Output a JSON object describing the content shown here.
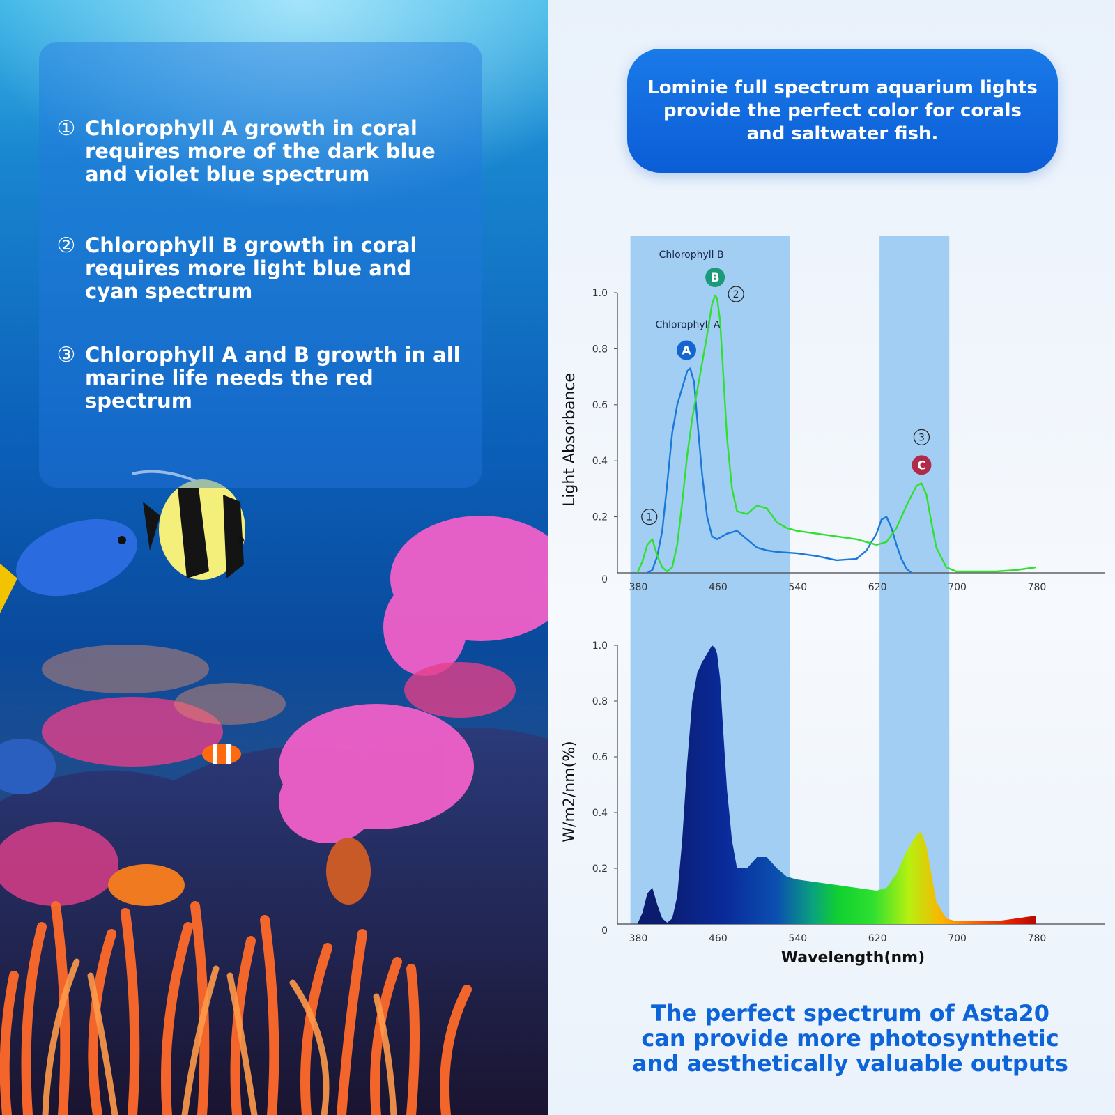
{
  "left_panel": {
    "points": [
      {
        "num": "①",
        "text": "Chlorophyll A growth in coral requires more of the dark blue and violet blue spectrum"
      },
      {
        "num": "②",
        "text": "Chlorophyll B growth in coral requires more light blue and cyan spectrum"
      },
      {
        "num": "③",
        "text": "Chlorophyll A and B growth in all marine life needs the red spectrum"
      }
    ]
  },
  "headline": "Lominie full spectrum aquarium lights provide the perfect color for corals and saltwater fish.",
  "footer": "The perfect spectrum of Asta20 can provide more photosynthetic and aesthetically valuable outputs",
  "colors": {
    "chl_a": "#1a78d8",
    "chl_b": "#2fe02f",
    "band": "#9ecbf2",
    "accent": "#0d63d8",
    "marker_c": "#b02a4a"
  },
  "chart_data": [
    {
      "type": "line",
      "ylabel": "Light Absorbance",
      "xlim": [
        360,
        780
      ],
      "ylim": [
        0,
        1.0
      ],
      "x_ticks": [
        "380",
        "460",
        "540",
        "620",
        "700",
        "780"
      ],
      "y_ticks": [
        "0",
        "0.2",
        "0.4",
        "0.6",
        "0.8",
        "1.0"
      ],
      "highlight_bands": [
        [
          380,
          540
        ],
        [
          630,
          700
        ]
      ],
      "series": [
        {
          "name": "Chlorophyll A",
          "x": [
            390,
            395,
            400,
            405,
            410,
            415,
            420,
            425,
            430,
            433,
            437,
            440,
            445,
            450,
            455,
            460,
            465,
            470,
            480,
            490,
            500,
            510,
            520,
            540,
            560,
            580,
            600,
            610,
            620,
            625,
            630,
            635,
            640,
            645,
            650,
            655
          ],
          "y": [
            0,
            0.01,
            0.06,
            0.15,
            0.32,
            0.5,
            0.6,
            0.66,
            0.72,
            0.73,
            0.68,
            0.55,
            0.35,
            0.2,
            0.13,
            0.12,
            0.13,
            0.14,
            0.15,
            0.12,
            0.09,
            0.08,
            0.075,
            0.07,
            0.06,
            0.045,
            0.05,
            0.08,
            0.14,
            0.19,
            0.2,
            0.16,
            0.1,
            0.05,
            0.015,
            0
          ]
        },
        {
          "name": "Chlorophyll B",
          "x": [
            380,
            385,
            390,
            395,
            400,
            405,
            410,
            415,
            420,
            425,
            430,
            435,
            440,
            445,
            450,
            455,
            458,
            460,
            463,
            466,
            470,
            475,
            480,
            490,
            500,
            510,
            520,
            530,
            540,
            560,
            580,
            600,
            620,
            630,
            640,
            650,
            660,
            665,
            670,
            675,
            680,
            690,
            700,
            720,
            740,
            760,
            780
          ],
          "y": [
            0,
            0.04,
            0.1,
            0.12,
            0.06,
            0.02,
            0.005,
            0.02,
            0.1,
            0.25,
            0.42,
            0.55,
            0.65,
            0.75,
            0.85,
            0.96,
            0.99,
            0.98,
            0.9,
            0.72,
            0.48,
            0.3,
            0.22,
            0.21,
            0.24,
            0.23,
            0.18,
            0.16,
            0.15,
            0.14,
            0.13,
            0.12,
            0.1,
            0.11,
            0.16,
            0.24,
            0.31,
            0.32,
            0.28,
            0.18,
            0.09,
            0.02,
            0.005,
            0.005,
            0.005,
            0.01,
            0.02
          ]
        }
      ],
      "annotations": [
        {
          "marker": "A",
          "label": "Chlorophyll A"
        },
        {
          "marker": "B",
          "label": "Chlorophyll B"
        },
        {
          "marker": "C",
          "label": ""
        },
        {
          "marker": "①"
        },
        {
          "marker": "②"
        },
        {
          "marker": "③"
        }
      ]
    },
    {
      "type": "area",
      "ylabel": "W/m2/nm(%)",
      "xlabel": "Wavelength(nm)",
      "xlim": [
        360,
        780
      ],
      "ylim": [
        0,
        1.0
      ],
      "x_ticks": [
        "380",
        "460",
        "540",
        "620",
        "700",
        "780"
      ],
      "y_ticks": [
        "0",
        "0.2",
        "0.4",
        "0.6",
        "0.8",
        "1.0"
      ],
      "highlight_bands": [
        [
          380,
          540
        ],
        [
          630,
          700
        ]
      ],
      "series": [
        {
          "name": "",
          "x": [
            380,
            385,
            390,
            395,
            400,
            405,
            410,
            415,
            420,
            425,
            430,
            435,
            440,
            445,
            450,
            455,
            458,
            460,
            463,
            466,
            470,
            475,
            480,
            490,
            500,
            510,
            520,
            530,
            540,
            560,
            580,
            600,
            620,
            630,
            640,
            650,
            660,
            665,
            670,
            675,
            680,
            690,
            700,
            720,
            740,
            760,
            780
          ],
          "y": [
            0,
            0.04,
            0.11,
            0.13,
            0.07,
            0.02,
            0.005,
            0.02,
            0.1,
            0.3,
            0.58,
            0.8,
            0.9,
            0.94,
            0.97,
            1.0,
            0.99,
            0.97,
            0.88,
            0.7,
            0.48,
            0.3,
            0.2,
            0.2,
            0.24,
            0.24,
            0.2,
            0.17,
            0.16,
            0.15,
            0.14,
            0.13,
            0.12,
            0.13,
            0.18,
            0.26,
            0.32,
            0.33,
            0.28,
            0.18,
            0.08,
            0.02,
            0.01,
            0.01,
            0.01,
            0.02,
            0.03
          ]
        }
      ]
    }
  ]
}
